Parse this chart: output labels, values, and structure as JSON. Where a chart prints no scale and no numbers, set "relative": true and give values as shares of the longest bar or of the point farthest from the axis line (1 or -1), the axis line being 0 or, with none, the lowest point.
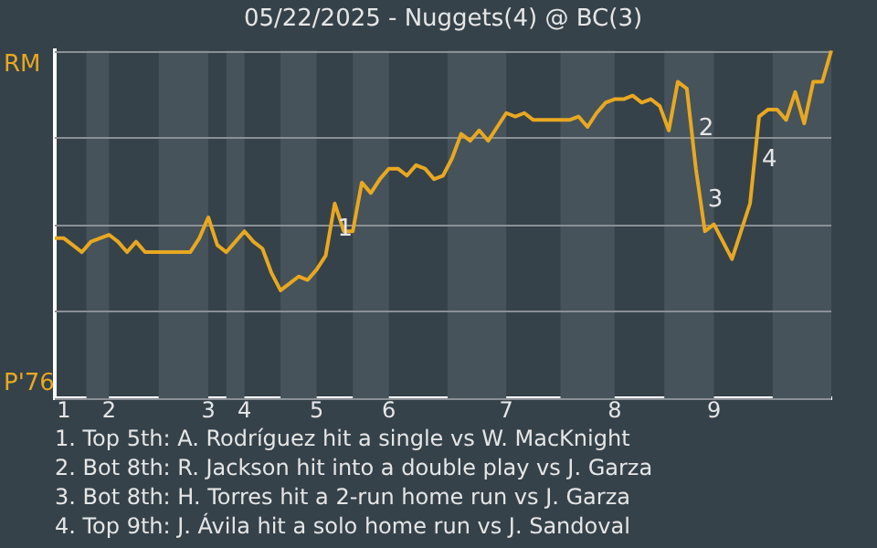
{
  "chart_data": {
    "type": "line",
    "title": "05/22/2025 - Nuggets(4) @ BC(3)",
    "relative": true,
    "categories": [
      null,
      "1",
      null,
      null,
      null,
      null,
      "2",
      null,
      null,
      null,
      null,
      null,
      null,
      null,
      null,
      null,
      null,
      "3",
      null,
      null,
      null,
      "4",
      null,
      null,
      null,
      null,
      null,
      null,
      null,
      "5",
      null,
      null,
      null,
      null,
      null,
      null,
      null,
      "6",
      null,
      null,
      null,
      null,
      null,
      null,
      null,
      null,
      null,
      null,
      null,
      null,
      "7",
      null,
      null,
      null,
      null,
      null,
      null,
      null,
      null,
      null,
      null,
      null,
      "8",
      null,
      null,
      null,
      null,
      null,
      null,
      null,
      null,
      null,
      null,
      "9",
      null,
      null,
      null,
      null,
      null,
      null,
      null,
      null,
      null,
      null,
      null,
      null,
      null
    ],
    "grid": "y",
    "legend": false,
    "marker": "none",
    "line_style": "solid",
    "series": [
      {
        "color": "#e8a820",
        "values": [
          0.46,
          0.46,
          0.44,
          0.42,
          0.45,
          0.46,
          0.47,
          0.45,
          0.42,
          0.45,
          0.42,
          0.42,
          0.42,
          0.42,
          0.42,
          0.42,
          0.46,
          0.52,
          0.44,
          0.42,
          0.45,
          0.48,
          0.45,
          0.43,
          0.36,
          0.31,
          0.33,
          0.35,
          0.34,
          0.37,
          0.41,
          0.56,
          0.48,
          0.48,
          0.62,
          0.59,
          0.63,
          0.66,
          0.66,
          0.64,
          0.67,
          0.66,
          0.63,
          0.64,
          0.69,
          0.76,
          0.74,
          0.77,
          0.74,
          0.78,
          0.82,
          0.81,
          0.82,
          0.8,
          0.8,
          0.8,
          0.8,
          0.8,
          0.81,
          0.78,
          0.82,
          0.85,
          0.86,
          0.86,
          0.87,
          0.85,
          0.86,
          0.84,
          0.77,
          0.91,
          0.89,
          0.66,
          0.48,
          0.5,
          0.45,
          0.4,
          0.48,
          0.56,
          0.81,
          0.83,
          0.83,
          0.8,
          0.88,
          0.79,
          0.91,
          0.91,
          1
        ]
      }
    ],
    "annotations": [
      "RM",
      "P'76",
      "1",
      "2",
      "3",
      "4",
      "1. Top 5th: A. Rodríguez hit a single vs W. MacKnight",
      "2. Bot 8th: R. Jackson hit into a double play vs J. Garza",
      "3. Bot 8th: H. Torres hit a 2-run home run vs J. Garza",
      "4. Top 9th: J. Ávila hit a solo home run vs J. Sandoval"
    ]
  }
}
